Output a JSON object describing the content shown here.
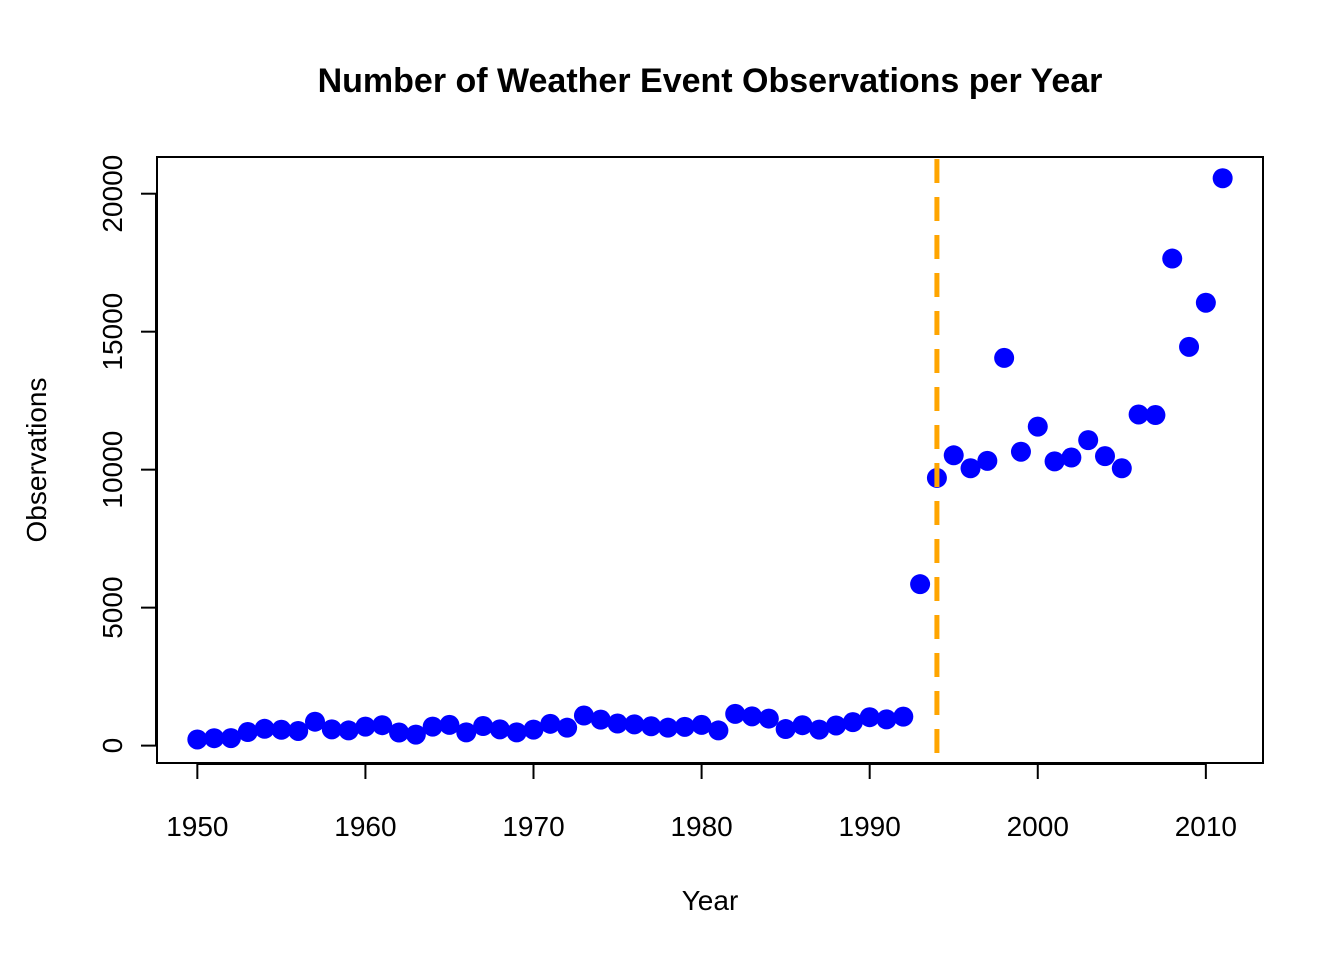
{
  "chart_data": {
    "type": "scatter",
    "title": "Number of Weather Event Observations per Year",
    "xlabel": "Year",
    "ylabel": "Observations",
    "xlim": [
      1947.6,
      2013.4
    ],
    "ylim": [
      -630,
      21330
    ],
    "x_ticks": [
      1950,
      1960,
      1970,
      1980,
      1990,
      2000,
      2010
    ],
    "y_ticks": [
      0,
      5000,
      10000,
      15000,
      20000
    ],
    "grid": false,
    "legend": "none",
    "point_color": "#0000ff",
    "reference_line": {
      "x": 1994,
      "color": "#ffa500",
      "style": "dashed"
    },
    "x": [
      1950,
      1951,
      1952,
      1953,
      1954,
      1955,
      1956,
      1957,
      1958,
      1959,
      1960,
      1961,
      1962,
      1963,
      1964,
      1965,
      1966,
      1967,
      1968,
      1969,
      1970,
      1971,
      1972,
      1973,
      1974,
      1975,
      1976,
      1977,
      1978,
      1979,
      1980,
      1981,
      1982,
      1983,
      1984,
      1985,
      1986,
      1987,
      1988,
      1989,
      1990,
      1991,
      1992,
      1993,
      1994,
      1995,
      1996,
      1997,
      1998,
      1999,
      2000,
      2001,
      2002,
      2003,
      2004,
      2005,
      2006,
      2007,
      2008,
      2009,
      2010,
      2011
    ],
    "y": [
      223,
      269,
      272,
      492,
      609,
      574,
      530,
      867,
      590,
      550,
      689,
      740,
      475,
      400,
      690,
      750,
      480,
      710,
      590,
      480,
      580,
      790,
      650,
      1090,
      940,
      800,
      770,
      700,
      650,
      680,
      750,
      550,
      1150,
      1060,
      980,
      600,
      740,
      580,
      730,
      850,
      1030,
      950,
      1050,
      5850,
      9700,
      10520,
      10050,
      10320,
      14050,
      10650,
      11560,
      10300,
      10440,
      11070,
      10490,
      10050,
      12000,
      11980,
      17650,
      14450,
      16050,
      20560
    ]
  }
}
